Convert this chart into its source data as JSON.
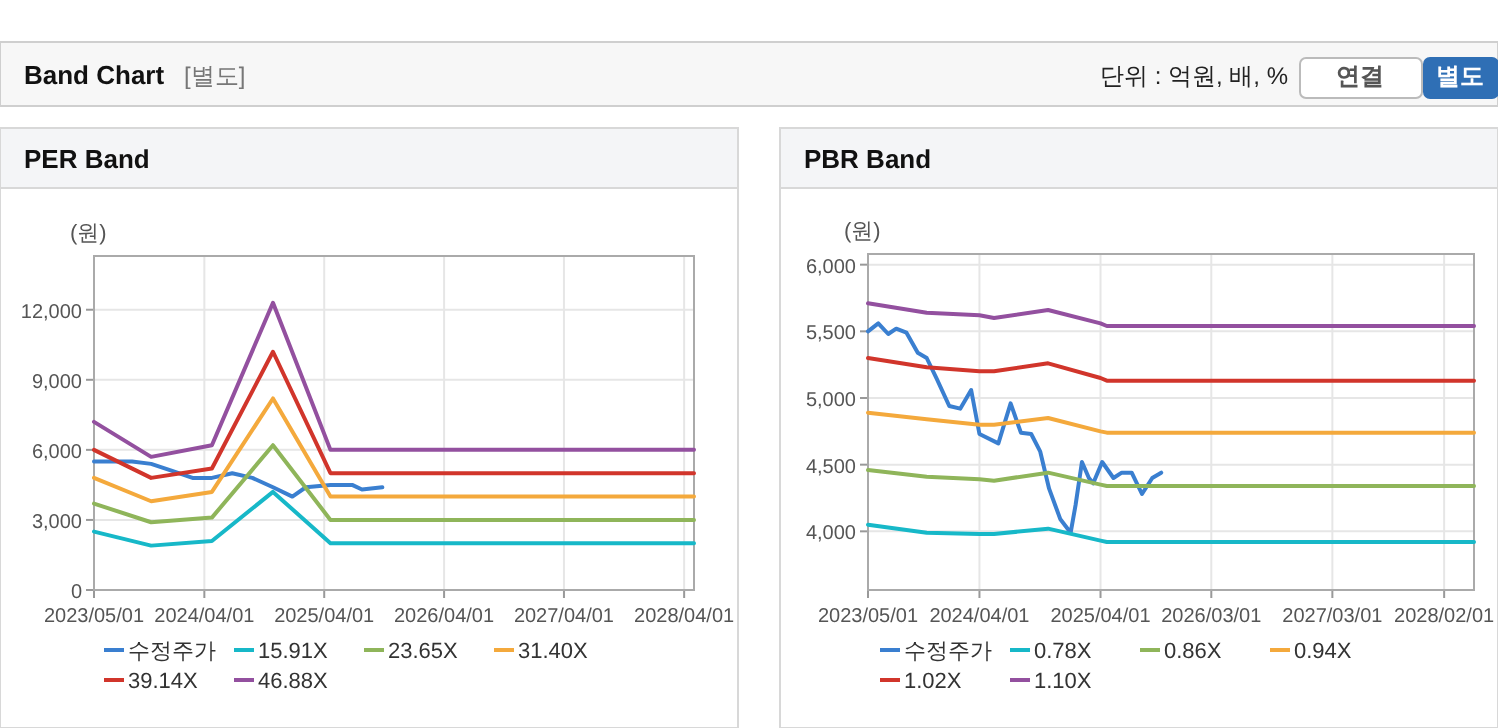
{
  "chart_data": [
    {
      "type": "line",
      "title": "PER Band",
      "ylabel": "(원)",
      "annotations": [
        "Band Chart",
        "[별도]",
        "단위 : 억원, 배, %",
        "연결",
        "별도"
      ],
      "xlim": [
        "2023-05-01",
        "2028-05-01"
      ],
      "xticks": [
        {
          "value": "2023-05-01",
          "label": "2023/05/01"
        },
        {
          "value": "2024-04-01",
          "label": "2024/04/01"
        },
        {
          "value": "2025-04-01",
          "label": "2025/04/01"
        },
        {
          "value": "2026-04-01",
          "label": "2026/04/01"
        },
        {
          "value": "2027-04-01",
          "label": "2027/04/01"
        },
        {
          "value": "2028-04-01",
          "label": "2028/04/01"
        }
      ],
      "ylim": [
        0,
        14300
      ],
      "yticks": [
        0,
        {
          "value": 3000,
          "label": "3,000"
        },
        {
          "value": 6000,
          "label": "6,000"
        },
        {
          "value": 9000,
          "label": "9,000"
        },
        {
          "value": 12000,
          "label": "12,000"
        }
      ],
      "grid": true,
      "legend": "bottom",
      "series": [
        {
          "name": "수정주가",
          "color": "#3a7fd0",
          "x": [
            "2023-05-01",
            "2023-08-25",
            "2023-10-22",
            "2023-12-25",
            "2024-02-25",
            "2024-04-24",
            "2024-06-25",
            "2024-08-25",
            "2024-10-27",
            "2024-12-25",
            "2025-02-04",
            "2025-04-20",
            "2025-06-25",
            "2025-07-25",
            "2025-09-25"
          ],
          "values": [
            5500,
            5500,
            5400,
            5100,
            4800,
            4800,
            5000,
            4800,
            4400,
            4000,
            4400,
            4500,
            4500,
            4300,
            4400
          ]
        },
        {
          "name": "15.91X",
          "color": "#17b8c8",
          "x": [
            "2023-05-01",
            "2023-10-22",
            "2024-04-24",
            "2024-10-27",
            "2025-04-20",
            "2028-05-01"
          ],
          "values": [
            2500,
            1900,
            2100,
            4200,
            2000,
            2000
          ]
        },
        {
          "name": "23.65X",
          "color": "#8fb55a",
          "x": [
            "2023-05-01",
            "2023-10-22",
            "2024-04-24",
            "2024-10-27",
            "2025-04-20",
            "2028-05-01"
          ],
          "values": [
            3700,
            2900,
            3100,
            6200,
            3000,
            3000
          ]
        },
        {
          "name": "31.40X",
          "color": "#f4a93c",
          "x": [
            "2023-05-01",
            "2023-10-22",
            "2024-04-24",
            "2024-10-27",
            "2025-04-20",
            "2028-05-01"
          ],
          "values": [
            4800,
            3800,
            4200,
            8200,
            4000,
            4000
          ]
        },
        {
          "name": "39.14X",
          "color": "#d1352b",
          "x": [
            "2023-05-01",
            "2023-10-22",
            "2024-04-24",
            "2024-10-27",
            "2025-04-20",
            "2028-05-01"
          ],
          "values": [
            6000,
            4800,
            5200,
            10200,
            5000,
            5000
          ]
        },
        {
          "name": "46.88X",
          "color": "#93509f",
          "x": [
            "2023-05-01",
            "2023-10-22",
            "2024-04-24",
            "2024-10-27",
            "2025-04-20",
            "2028-05-01"
          ],
          "values": [
            7200,
            5700,
            6200,
            12300,
            6000,
            6000
          ]
        }
      ]
    },
    {
      "type": "line",
      "title": "PBR Band",
      "ylabel": "(원)",
      "xlim": [
        "2023-05-01",
        "2028-05-01"
      ],
      "xticks": [
        {
          "value": "2023-05-01",
          "label": "2023/05/01"
        },
        {
          "value": "2024-04-01",
          "label": "2024/04/01"
        },
        {
          "value": "2025-04-01",
          "label": "2025/04/01"
        },
        {
          "value": "2026-03-01",
          "label": "2026/03/01"
        },
        {
          "value": "2027-03-01",
          "label": "2027/03/01"
        },
        {
          "value": "2028-02-01",
          "label": "2028/02/01"
        }
      ],
      "ylim": [
        3560,
        6080
      ],
      "yticks": [
        {
          "value": 4000,
          "label": "4,000"
        },
        {
          "value": 4500,
          "label": "4,500"
        },
        {
          "value": 5000,
          "label": "5,000"
        },
        {
          "value": 5500,
          "label": "5,500"
        },
        {
          "value": 6000,
          "label": "6,000"
        }
      ],
      "grid": true,
      "legend": "bottom",
      "series": [
        {
          "name": "수정주가",
          "color": "#3a7fd0",
          "x": [
            "2023-05-01",
            "2023-06-01",
            "2023-07-01",
            "2023-07-25",
            "2023-08-25",
            "2023-09-28",
            "2023-10-25",
            "2023-11-25",
            "2024-01-01",
            "2024-02-03",
            "2024-03-07",
            "2024-04-01",
            "2024-05-28",
            "2024-07-04",
            "2024-08-04",
            "2024-09-04",
            "2024-10-01",
            "2024-10-28",
            "2024-12-01",
            "2025-01-01",
            "2025-01-16",
            "2025-02-04",
            "2025-02-25",
            "2025-03-10",
            "2025-04-06",
            "2025-05-10",
            "2025-06-04",
            "2025-07-04",
            "2025-08-04",
            "2025-09-04",
            "2025-10-01"
          ],
          "values": [
            5500,
            5560,
            5480,
            5520,
            5490,
            5340,
            5300,
            5140,
            4940,
            4920,
            5060,
            4730,
            4660,
            4960,
            4740,
            4730,
            4600,
            4320,
            4090,
            3990,
            4200,
            4520,
            4400,
            4360,
            4520,
            4400,
            4440,
            4440,
            4280,
            4400,
            4440
          ]
        },
        {
          "name": "0.78X",
          "color": "#17b8c8",
          "x": [
            "2023-05-01",
            "2023-10-25",
            "2024-04-01",
            "2024-05-15",
            "2024-10-25",
            "2025-04-01",
            "2025-04-20",
            "2028-05-01"
          ],
          "values": [
            4050,
            3990,
            3980,
            3980,
            4020,
            3930,
            3920,
            3920
          ]
        },
        {
          "name": "0.86X",
          "color": "#8fb55a",
          "x": [
            "2023-05-01",
            "2023-10-25",
            "2024-04-01",
            "2024-05-15",
            "2024-10-25",
            "2025-04-01",
            "2025-04-20",
            "2028-05-01"
          ],
          "values": [
            4460,
            4410,
            4390,
            4380,
            4440,
            4350,
            4340,
            4340
          ]
        },
        {
          "name": "0.94X",
          "color": "#f4a93c",
          "x": [
            "2023-05-01",
            "2023-10-25",
            "2024-04-01",
            "2024-05-15",
            "2024-10-25",
            "2025-04-01",
            "2025-04-20",
            "2028-05-01"
          ],
          "values": [
            4890,
            4840,
            4800,
            4800,
            4850,
            4750,
            4740,
            4740
          ]
        },
        {
          "name": "1.02X",
          "color": "#d1352b",
          "x": [
            "2023-05-01",
            "2023-10-25",
            "2024-04-01",
            "2024-05-15",
            "2024-10-25",
            "2025-04-01",
            "2025-04-20",
            "2028-05-01"
          ],
          "values": [
            5300,
            5230,
            5200,
            5200,
            5260,
            5150,
            5130,
            5130
          ]
        },
        {
          "name": "1.10X",
          "color": "#93509f",
          "x": [
            "2023-05-01",
            "2023-10-25",
            "2024-04-01",
            "2024-05-15",
            "2024-10-25",
            "2025-04-01",
            "2025-04-20",
            "2028-05-01"
          ],
          "values": [
            5710,
            5640,
            5620,
            5600,
            5660,
            5560,
            5540,
            5540
          ]
        }
      ]
    }
  ]
}
